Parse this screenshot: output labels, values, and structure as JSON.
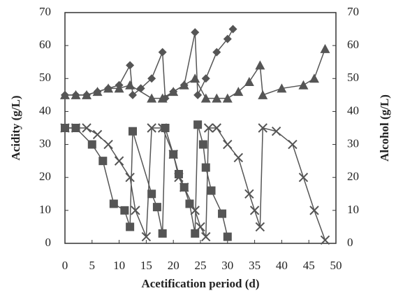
{
  "chart_data": {
    "type": "line",
    "xlabel": "Acetification period (d)",
    "ylabel": "Acidity (g/L)",
    "y2label": "Alcohol (g/L)",
    "xlim": [
      0,
      50
    ],
    "xticks": [
      0,
      5,
      10,
      15,
      20,
      25,
      30,
      35,
      40,
      45,
      50
    ],
    "ylim": [
      0,
      70
    ],
    "yticks": [
      0,
      10,
      20,
      30,
      40,
      50,
      60,
      70
    ],
    "y2lim": [
      0,
      70
    ],
    "y2ticks": [
      0,
      10,
      20,
      30,
      40,
      50,
      60,
      70
    ],
    "series": [
      {
        "color": "#555555",
        "marker": "diamond",
        "x": [
          0,
          2,
          4,
          6,
          8,
          10,
          12,
          12.5,
          14,
          16,
          18,
          18.5,
          20,
          22,
          24,
          24.5,
          26,
          28,
          30,
          31
        ],
        "values": [
          45,
          45,
          45,
          46,
          47,
          48,
          54,
          45,
          47,
          50,
          58,
          44,
          46,
          48,
          64,
          45,
          50,
          58,
          62,
          65
        ]
      },
      {
        "color": "#555555",
        "marker": "triangle",
        "x": [
          0,
          2,
          4,
          6,
          8,
          10,
          12,
          16,
          18,
          20,
          22,
          24,
          26,
          28,
          30,
          32,
          34,
          36,
          36.5,
          40,
          44,
          46,
          48
        ],
        "values": [
          45,
          45,
          45,
          46,
          47,
          47,
          48,
          44,
          44,
          46,
          48,
          50,
          44,
          44,
          44,
          46,
          49,
          54,
          45,
          47,
          48,
          50,
          59
        ]
      },
      {
        "color": "#555555",
        "marker": "square",
        "axis": "y2",
        "x": [
          0,
          2,
          5,
          7,
          9,
          11,
          12,
          12.5,
          16,
          17,
          18,
          18.5,
          20,
          21,
          22,
          23,
          24,
          24.5,
          25.5,
          26,
          27,
          29,
          30
        ],
        "values": [
          35,
          35,
          30,
          25,
          12,
          10,
          5,
          34,
          15,
          11,
          3,
          35,
          27,
          21,
          17,
          12,
          3,
          36,
          30,
          23,
          16,
          9,
          2
        ]
      },
      {
        "color": "#555555",
        "marker": "cross",
        "axis": "y2",
        "x": [
          0,
          2,
          4,
          6,
          8,
          10,
          12,
          13,
          15,
          16,
          18,
          20,
          21,
          22,
          24,
          25,
          26,
          26.5,
          28,
          30,
          32,
          34,
          35,
          36,
          36.5,
          39,
          42,
          44,
          46,
          48
        ],
        "values": [
          35,
          35,
          35,
          33,
          30,
          25,
          20,
          10,
          2,
          35,
          35,
          27,
          20,
          17,
          10,
          5,
          2,
          35,
          35,
          30,
          26,
          15,
          10,
          5,
          35,
          34,
          30,
          20,
          10,
          1
        ]
      }
    ]
  }
}
